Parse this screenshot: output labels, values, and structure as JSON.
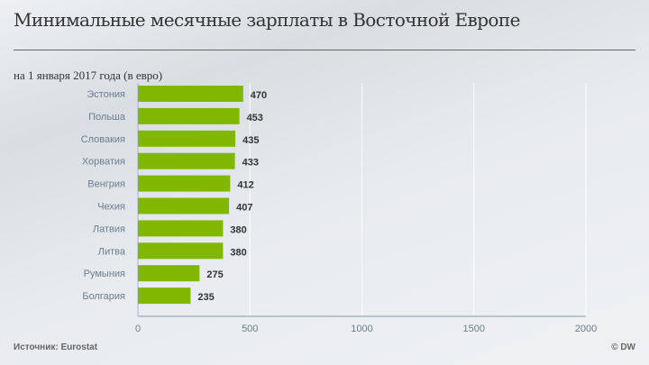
{
  "header": {
    "title": "Минимальные месячные зарплаты в Восточной Европе",
    "subtitle": "на 1 января 2017 года  (в евро)"
  },
  "footer": {
    "source": "Источник: Eurostat",
    "credit": "© DW"
  },
  "chart_data": {
    "type": "bar",
    "orientation": "horizontal",
    "title": "Минимальные месячные зарплаты в Восточной Европе",
    "subtitle": "на 1 января 2017 года  (в евро)",
    "categories": [
      "Эстония",
      "Польша",
      "Словакия",
      "Хорватия",
      "Венгрия",
      "Чехия",
      "Латвия",
      "Литва",
      "Румыния",
      "Болгария"
    ],
    "values": [
      470,
      453,
      435,
      433,
      412,
      407,
      380,
      380,
      275,
      235
    ],
    "xlim": [
      0,
      2000
    ],
    "xticks": [
      "0",
      "500",
      "1000",
      "1500",
      "2000"
    ],
    "grid": true,
    "bar_color": "#80b800"
  }
}
